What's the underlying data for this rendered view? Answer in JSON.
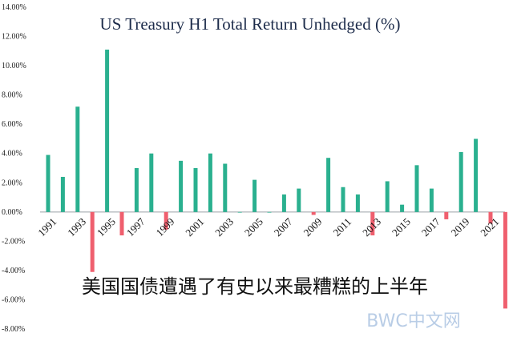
{
  "colors": {
    "positive": "#2ab08f",
    "negative": "#ef5f6e",
    "axis": "#9aa0a6"
  },
  "caption": "美国国债遭遇了有史以来最糟糕的上半年",
  "watermark": "BWC中文网",
  "chart_data": {
    "type": "bar",
    "title": "US Treasury H1 Total Return Unhedged (%)",
    "xlabel": "",
    "ylabel": "",
    "ylim": [
      -8,
      14
    ],
    "grid": false,
    "categories": [
      "1991",
      "1992",
      "1993",
      "1994",
      "1995",
      "1996",
      "1997",
      "1998",
      "1999",
      "2000",
      "2001",
      "2002",
      "2003",
      "2004",
      "2005",
      "2006",
      "2007",
      "2008",
      "2009",
      "2010",
      "2011",
      "2012",
      "2013",
      "2014",
      "2015",
      "2016",
      "2017",
      "2018",
      "2019",
      "2020",
      "2021",
      "2022"
    ],
    "values": [
      3.9,
      2.4,
      7.2,
      -4.1,
      11.1,
      -1.6,
      3.0,
      4.0,
      -1.2,
      3.5,
      3.0,
      4.0,
      3.3,
      0.0,
      2.2,
      0.0,
      1.2,
      1.6,
      -0.2,
      3.7,
      1.7,
      1.2,
      -1.6,
      2.1,
      0.5,
      3.2,
      1.6,
      -0.5,
      4.1,
      5.0,
      -0.8,
      -6.6
    ],
    "yticks": [
      "-8.00%",
      "-6.00%",
      "-4.00%",
      "-2.00%",
      "0.00%",
      "2.00%",
      "4.00%",
      "6.00%",
      "8.00%",
      "10.00%",
      "12.00%",
      "14.00%"
    ],
    "xtick_labels": [
      "1991",
      "1993",
      "1995",
      "1997",
      "1999",
      "2001",
      "2003",
      "2005",
      "2007",
      "2009",
      "2011",
      "2013",
      "2015",
      "2017",
      "2019",
      "2021"
    ]
  }
}
